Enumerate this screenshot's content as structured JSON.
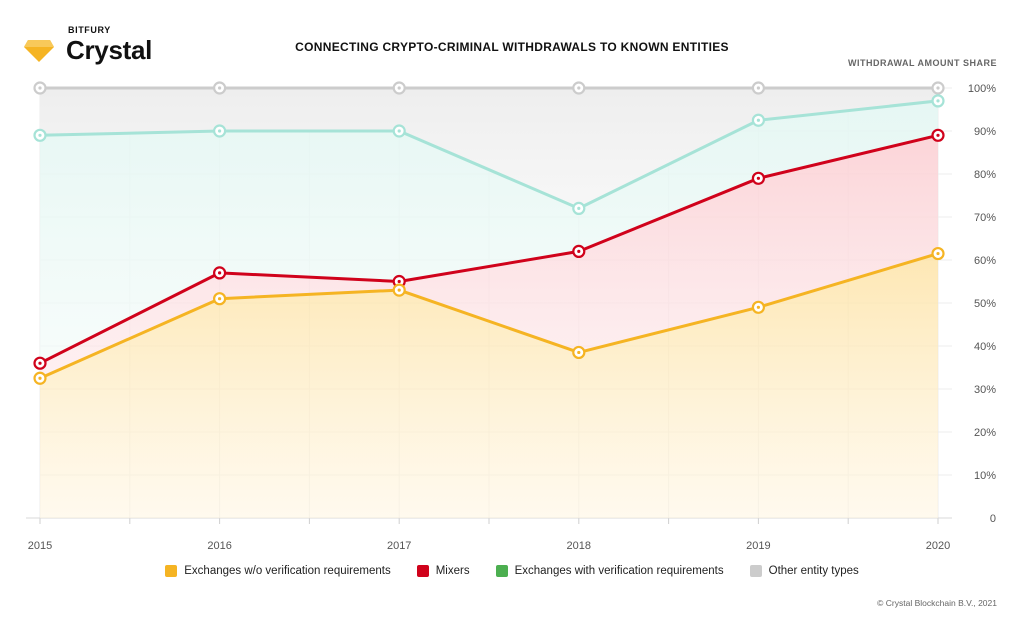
{
  "brand": {
    "company": "BITFURY",
    "product": "Crystal",
    "logo_color": "#f5b423"
  },
  "header": {
    "title": "CONNECTING CRYPTO-CRIMINAL WITHDRAWALS TO KNOWN ENTITIES",
    "axis_caption": "WITHDRAWAL AMOUNT SHARE"
  },
  "chart_data": {
    "type": "area",
    "categories": [
      "2015",
      "2016",
      "2017",
      "2018",
      "2019",
      "2020"
    ],
    "ylim": [
      0,
      100
    ],
    "y_ticks": [
      "0",
      "10%",
      "20%",
      "30%",
      "40%",
      "50%",
      "60%",
      "70%",
      "80%",
      "90%",
      "100%"
    ],
    "y_axis_position": "right",
    "stacked_cumulative": true,
    "series": [
      {
        "name": "Exchanges w/o verification requirements",
        "color": "#f5b423",
        "values": [
          32.5,
          51,
          53,
          38.5,
          49,
          61.5
        ]
      },
      {
        "name": "Mixers",
        "color": "#d0021b",
        "values": [
          36,
          57,
          55,
          62,
          79,
          89
        ]
      },
      {
        "name": "Exchanges with verification requirements",
        "color": "#4caf50",
        "line_color": "#a6e3d7",
        "values": [
          89,
          90,
          90,
          72,
          92.5,
          97
        ]
      },
      {
        "name": "Other entity types",
        "color": "#cccccc",
        "values": [
          100,
          100,
          100,
          100,
          100,
          100
        ]
      }
    ],
    "grid": true,
    "legend_position": "bottom"
  },
  "footer": {
    "copyright": "© Crystal Blockchain B.V., 2021"
  }
}
